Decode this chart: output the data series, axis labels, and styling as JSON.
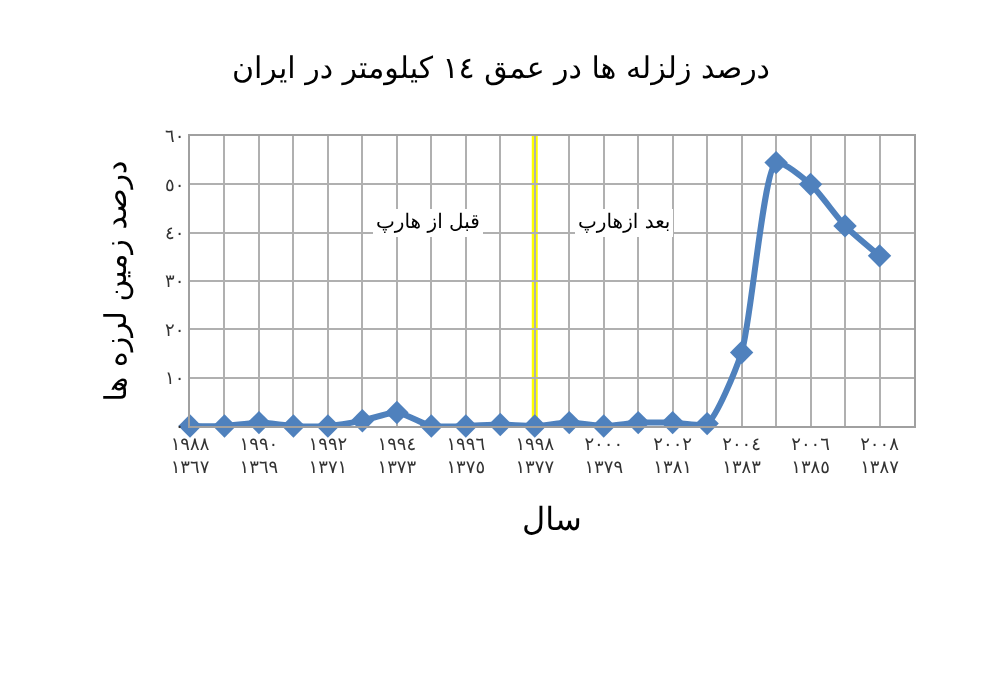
{
  "chart_data": {
    "type": "line",
    "title": "درصد زلزله ها در عمق ١٤ کیلومتر در ایران",
    "xlabel": "سال",
    "ylabel": "درصد زمین لرزه ها",
    "categories": [
      "١٩٨٨\n١٣٦٧",
      null,
      "١٩٩٠\n١٣٦٩",
      null,
      "١٩٩٢\n١٣٧١",
      null,
      "١٩٩٤\n١٣٧٣",
      null,
      "١٩٩٦\n١٣٧٥",
      null,
      "١٩٩٨\n١٣٧٧",
      null,
      "٢٠٠٠\n١٣٧٩",
      null,
      "٢٠٠٢\n١٣٨١",
      null,
      "٢٠٠٤\n١٣٨٣",
      null,
      "٢٠٠٦\n١٣٨٥",
      null,
      "٢٠٠٨\n١٣٨٧",
      null
    ],
    "series": [
      {
        "color": "#4f81bd",
        "values": [
          0,
          0,
          0.7,
          0,
          0,
          1.1,
          2.8,
          0,
          0,
          0.3,
          0,
          0.7,
          0,
          0.7,
          0.7,
          0.5,
          15.2,
          54.5,
          50,
          41.4,
          35.2,
          null
        ]
      }
    ],
    "ylim": [
      0,
      60
    ],
    "yticks": [
      {
        "value": 0,
        "label": "٠"
      },
      {
        "value": 10,
        "label": "١٠"
      },
      {
        "value": 20,
        "label": "٢٠"
      },
      {
        "value": 30,
        "label": "٣٠"
      },
      {
        "value": 40,
        "label": "٤٠"
      },
      {
        "value": 50,
        "label": "٥٠"
      },
      {
        "value": 60,
        "label": "٦٠"
      }
    ],
    "ref_lines": [
      {
        "axis": "x",
        "value": "١٩٩٨\n١٣٧٧",
        "color": "#ffff00"
      }
    ],
    "annotations": [
      "قبل از هارپ",
      "بعد ازهارپ"
    ],
    "grid": true,
    "marker": "diamond",
    "line_style": "solid"
  }
}
